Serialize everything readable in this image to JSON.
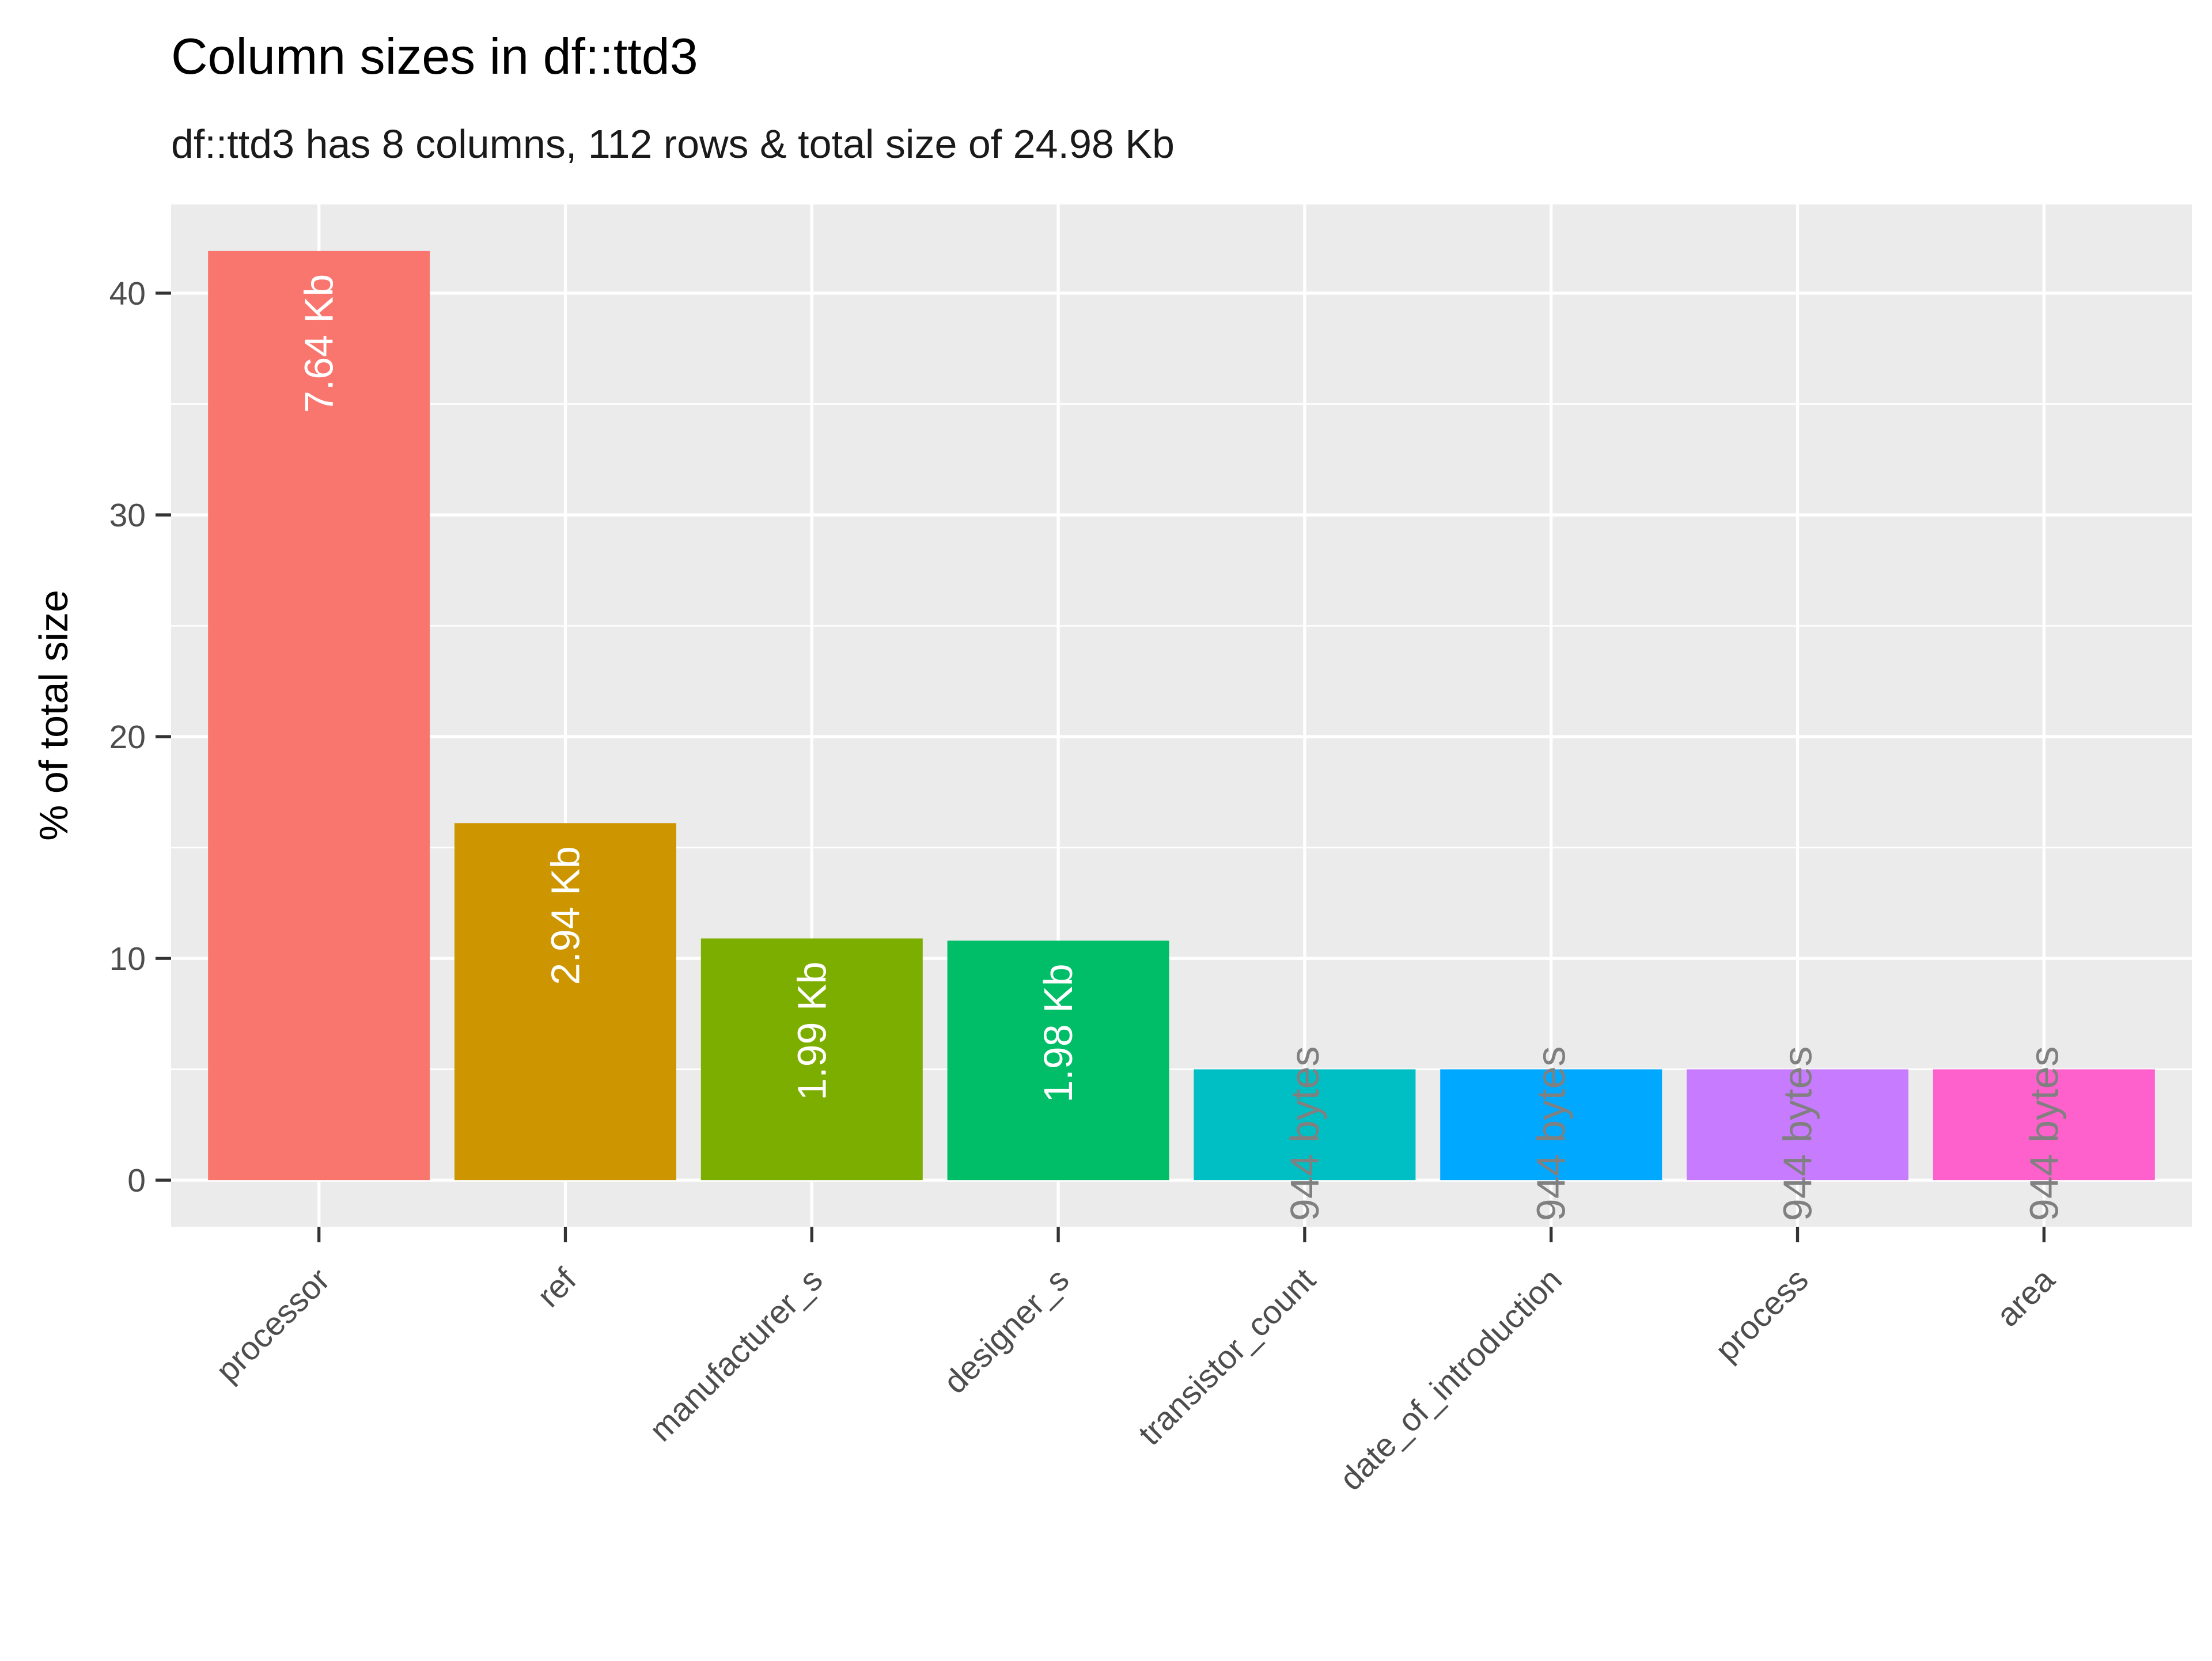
{
  "chart_data": {
    "type": "bar",
    "title": "Column sizes in df::ttd3",
    "subtitle": "df::ttd3 has 8 columns, 112 rows & total size of 24.98 Kb",
    "xlabel": "",
    "ylabel": "% of total size",
    "categories": [
      "processor",
      "ref",
      "manufacturer_s",
      "designer_s",
      "transistor_count",
      "date_of_introduction",
      "process",
      "area"
    ],
    "values": [
      41.9,
      16.1,
      10.9,
      10.8,
      5.0,
      5.0,
      5.0,
      5.0
    ],
    "data_labels": [
      "7.64 Kb",
      "2.94 Kb",
      "1.99 Kb",
      "1.98 Kb",
      "944 bytes",
      "944 bytes",
      "944 bytes",
      "944 bytes"
    ],
    "colors": [
      "#F8766D",
      "#CD9600",
      "#7CAE00",
      "#00BE67",
      "#00BFC4",
      "#00A9FF",
      "#C77CFF",
      "#FF61CC"
    ],
    "label_inside": [
      true,
      true,
      true,
      true,
      false,
      false,
      false,
      false
    ],
    "inside_label_color": "#ffffff",
    "outside_label_color": "#808080",
    "yticks": [
      0,
      10,
      20,
      30,
      40
    ],
    "ylim": [
      -2.1,
      44
    ],
    "grid": true,
    "legend": "none",
    "panel_background": "#EBEBEB",
    "grid_color": "#ffffff"
  }
}
